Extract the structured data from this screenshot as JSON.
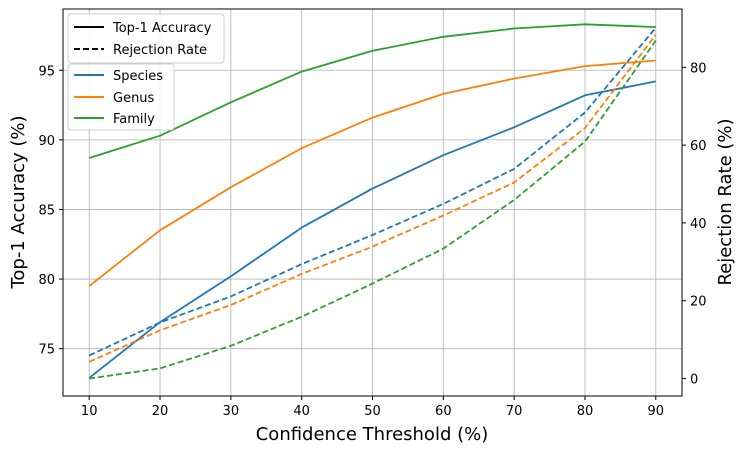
{
  "chart_data": {
    "type": "line",
    "xlabel": "Confidence Threshold (%)",
    "ylabel_left": "Top-1 Accuracy (%)",
    "ylabel_right": "Rejection Rate (%)",
    "x": [
      10,
      20,
      30,
      40,
      50,
      60,
      70,
      80,
      90
    ],
    "x_ticks": [
      "10",
      "20",
      "30",
      "40",
      "50",
      "60",
      "70",
      "80",
      "90"
    ],
    "y_left_ticks": [
      "75",
      "80",
      "85",
      "90",
      "95"
    ],
    "y_right_ticks": [
      "0",
      "20",
      "40",
      "60",
      "80"
    ],
    "xlim": [
      6.3,
      93.7
    ],
    "ylim_left": [
      71.6,
      99.4
    ],
    "ylim_right": [
      -4.5,
      95
    ],
    "grid": true,
    "line_style_legend": {
      "position": "top-left",
      "entries": [
        {
          "label": "Top-1 Accuracy",
          "style": "solid"
        },
        {
          "label": "Rejection Rate",
          "style": "dashed"
        }
      ]
    },
    "series_legend": {
      "position": "upper-left",
      "entries": [
        "Species",
        "Genus",
        "Family"
      ]
    },
    "series": [
      {
        "name": "Species",
        "color": "#1f77b4",
        "accuracy": [
          72.9,
          76.9,
          80.2,
          83.7,
          86.5,
          88.9,
          90.9,
          93.2,
          94.2
        ],
        "rejection": [
          5.9,
          14.4,
          21.1,
          29.4,
          36.9,
          44.9,
          53.9,
          68.4,
          90.2
        ]
      },
      {
        "name": "Genus",
        "color": "#ff7f0e",
        "accuracy": [
          79.5,
          83.5,
          86.6,
          89.4,
          91.6,
          93.3,
          94.4,
          95.3,
          95.7
        ],
        "rejection": [
          4.3,
          12.4,
          18.9,
          26.9,
          33.9,
          41.9,
          50.4,
          64.4,
          88.4
        ]
      },
      {
        "name": "Family",
        "color": "#2ca02c",
        "accuracy": [
          88.7,
          90.3,
          92.7,
          94.9,
          96.4,
          97.4,
          98.0,
          98.3,
          98.1
        ],
        "rejection": [
          0.0,
          2.6,
          8.4,
          15.9,
          24.4,
          33.4,
          45.9,
          60.9,
          86.9
        ]
      }
    ]
  }
}
